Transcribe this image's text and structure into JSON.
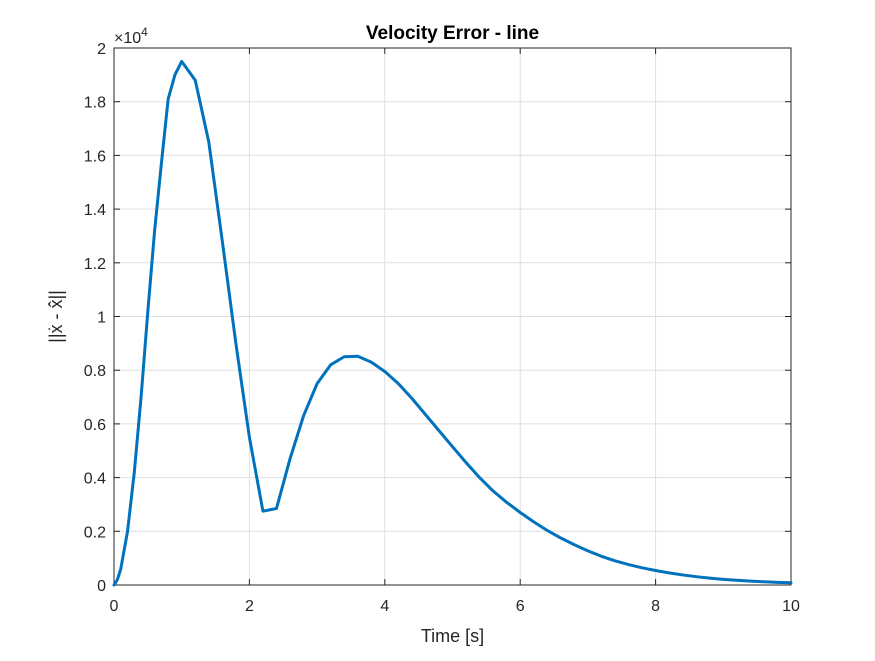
{
  "chart_data": {
    "type": "line",
    "title": "Velocity Error - line",
    "xlabel": "Time [s]",
    "ylabel": "||ẋ - ẋ̂||",
    "y_exponent_base": "×10",
    "y_exponent_power": "4",
    "xlim": [
      0,
      10
    ],
    "ylim": [
      0,
      20000
    ],
    "grid": true,
    "xticks": [
      0,
      2,
      4,
      6,
      8,
      10
    ],
    "xtick_labels": [
      "0",
      "2",
      "4",
      "6",
      "8",
      "10"
    ],
    "yticks": [
      0,
      2000,
      4000,
      6000,
      8000,
      10000,
      12000,
      14000,
      16000,
      18000,
      20000
    ],
    "ytick_labels": [
      "0",
      "0.2",
      "0.4",
      "0.6",
      "0.8",
      "1",
      "1.2",
      "1.4",
      "1.6",
      "1.8",
      "2"
    ],
    "line_color": "#0072BD",
    "series": [
      {
        "x": [
          0,
          0.05,
          0.1,
          0.2,
          0.3,
          0.4,
          0.5,
          0.6,
          0.7,
          0.8,
          0.9,
          1.0,
          1.2,
          1.4,
          1.6,
          1.8,
          2.0,
          2.2,
          2.4,
          2.6,
          2.8,
          3.0,
          3.2,
          3.4,
          3.6,
          3.8,
          4.0,
          4.2,
          4.4,
          4.6,
          4.8,
          5.0,
          5.2,
          5.4,
          5.6,
          5.8,
          6.0,
          6.2,
          6.4,
          6.6,
          6.8,
          7.0,
          7.2,
          7.4,
          7.6,
          7.8,
          8.0,
          8.2,
          8.4,
          8.6,
          8.8,
          9.0,
          9.2,
          9.4,
          9.6,
          9.8,
          10.0
        ],
        "y": [
          0,
          200,
          600,
          2000,
          4200,
          7000,
          10200,
          13200,
          15700,
          18100,
          19000,
          19500,
          18800,
          16500,
          12800,
          9000,
          5500,
          2750,
          2850,
          4700,
          6300,
          7500,
          8200,
          8500,
          8520,
          8300,
          7950,
          7500,
          6950,
          6350,
          5750,
          5150,
          4560,
          4000,
          3500,
          3080,
          2700,
          2350,
          2030,
          1750,
          1500,
          1270,
          1070,
          900,
          760,
          640,
          540,
          450,
          375,
          310,
          255,
          210,
          175,
          145,
          120,
          100,
          85
        ]
      }
    ]
  }
}
